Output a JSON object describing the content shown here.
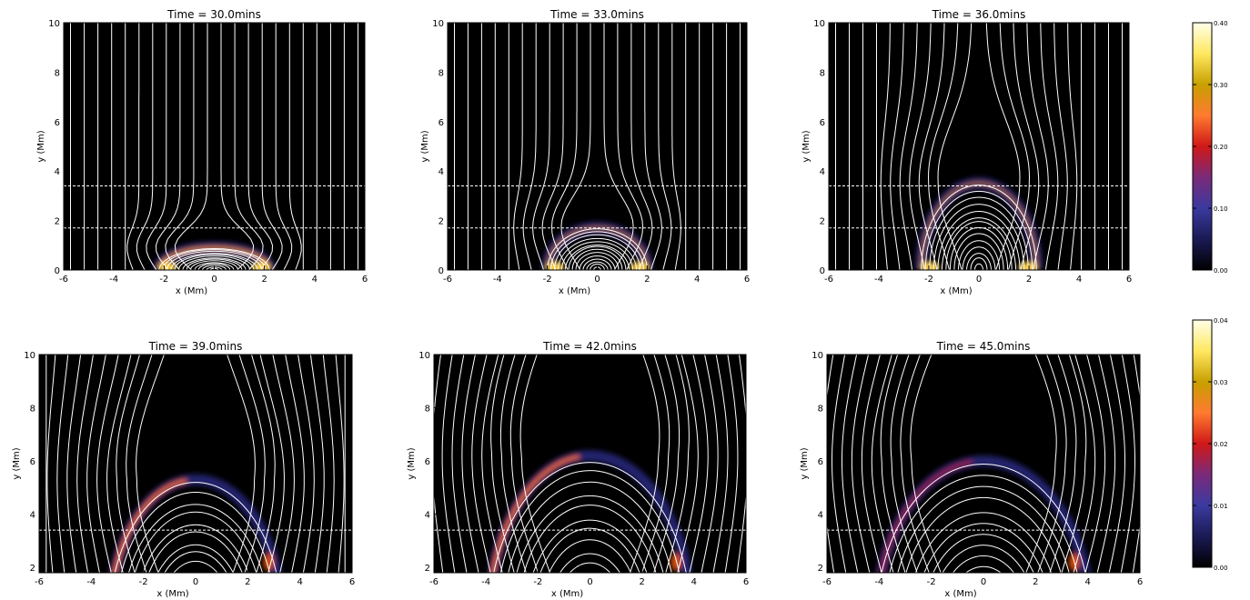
{
  "chart_data": [
    {
      "type": "heatmap",
      "title": "Time = 30.0mins",
      "xlabel": "x (Mm)",
      "ylabel": "y (Mm)",
      "xlim": [
        -6,
        6
      ],
      "ylim": [
        0,
        10
      ],
      "xticks": [
        "-6",
        "-4",
        "-2",
        "0",
        "2",
        "4",
        "6"
      ],
      "yticks": [
        "0",
        "2",
        "4",
        "6",
        "8",
        "10"
      ],
      "dashed_lines_y": [
        1.7,
        3.4
      ],
      "loop_height": 0.9,
      "loop_width": 2.2,
      "colorbar": "cb1"
    },
    {
      "type": "heatmap",
      "title": "Time = 33.0mins",
      "xlabel": "x (Mm)",
      "ylabel": "y (Mm)",
      "xlim": [
        -6,
        6
      ],
      "ylim": [
        0,
        10
      ],
      "xticks": [
        "-6",
        "-4",
        "-2",
        "0",
        "2",
        "4",
        "6"
      ],
      "yticks": [
        "0",
        "2",
        "4",
        "6",
        "8",
        "10"
      ],
      "dashed_lines_y": [
        1.7,
        3.4
      ],
      "loop_height": 1.7,
      "loop_width": 2.0,
      "colorbar": "cb1"
    },
    {
      "type": "heatmap",
      "title": "Time = 36.0mins",
      "xlabel": "x (Mm)",
      "ylabel": "y (Mm)",
      "xlim": [
        -6,
        6
      ],
      "ylim": [
        0,
        10
      ],
      "xticks": [
        "-6",
        "-4",
        "-2",
        "0",
        "2",
        "4",
        "6"
      ],
      "yticks": [
        "0",
        "2",
        "4",
        "6",
        "8",
        "10"
      ],
      "dashed_lines_y": [
        1.7,
        3.4
      ],
      "loop_height": 3.5,
      "loop_width": 2.3,
      "colorbar": "cb1"
    },
    {
      "type": "heatmap",
      "title": "Time = 39.0mins",
      "xlabel": "x (Mm)",
      "ylabel": "y (Mm)",
      "xlim": [
        -6,
        6
      ],
      "ylim": [
        1.8,
        10
      ],
      "xticks": [
        "-6",
        "-4",
        "-2",
        "0",
        "2",
        "4",
        "6"
      ],
      "yticks": [
        "2",
        "4",
        "6",
        "8",
        "10"
      ],
      "dashed_lines_y": [
        3.4
      ],
      "loop_height": 5.3,
      "loop_width": 3.3,
      "colorbar": "cb2"
    },
    {
      "type": "heatmap",
      "title": "Time = 42.0mins",
      "xlabel": "x (Mm)",
      "ylabel": "y (Mm)",
      "xlim": [
        -6,
        6
      ],
      "ylim": [
        1.8,
        10
      ],
      "xticks": [
        "-6",
        "-4",
        "-2",
        "0",
        "2",
        "4",
        "6"
      ],
      "yticks": [
        "2",
        "4",
        "6",
        "8",
        "10"
      ],
      "dashed_lines_y": [
        3.4
      ],
      "loop_height": 6.2,
      "loop_width": 3.9,
      "colorbar": "cb2"
    },
    {
      "type": "heatmap",
      "title": "Time = 45.0mins",
      "xlabel": "x (Mm)",
      "ylabel": "y (Mm)",
      "xlim": [
        -6,
        6
      ],
      "ylim": [
        1.8,
        10
      ],
      "xticks": [
        "-6",
        "-4",
        "-2",
        "0",
        "2",
        "4",
        "6"
      ],
      "yticks": [
        "2",
        "4",
        "6",
        "8",
        "10"
      ],
      "dashed_lines_y": [
        3.4
      ],
      "loop_height": 6.0,
      "loop_width": 4.1,
      "colorbar": "cb2"
    }
  ],
  "colorbars": {
    "cb1": {
      "ticks": [
        "0.40",
        "0.30",
        "0.20",
        "0.10",
        "0.00"
      ],
      "range": [
        0,
        0.4
      ]
    },
    "cb2": {
      "ticks": [
        "0.04",
        "0.03",
        "0.02",
        "0.01",
        "0.00"
      ],
      "range": [
        0,
        0.04
      ]
    }
  },
  "colors": {
    "background": "#000000",
    "field_lines": "#ffffff",
    "colormap": [
      "#000000",
      "#1a1a55",
      "#3a3aa0",
      "#7a2a7a",
      "#d01818",
      "#ff7a30",
      "#c8a000",
      "#ffe860",
      "#ffffe8"
    ]
  }
}
